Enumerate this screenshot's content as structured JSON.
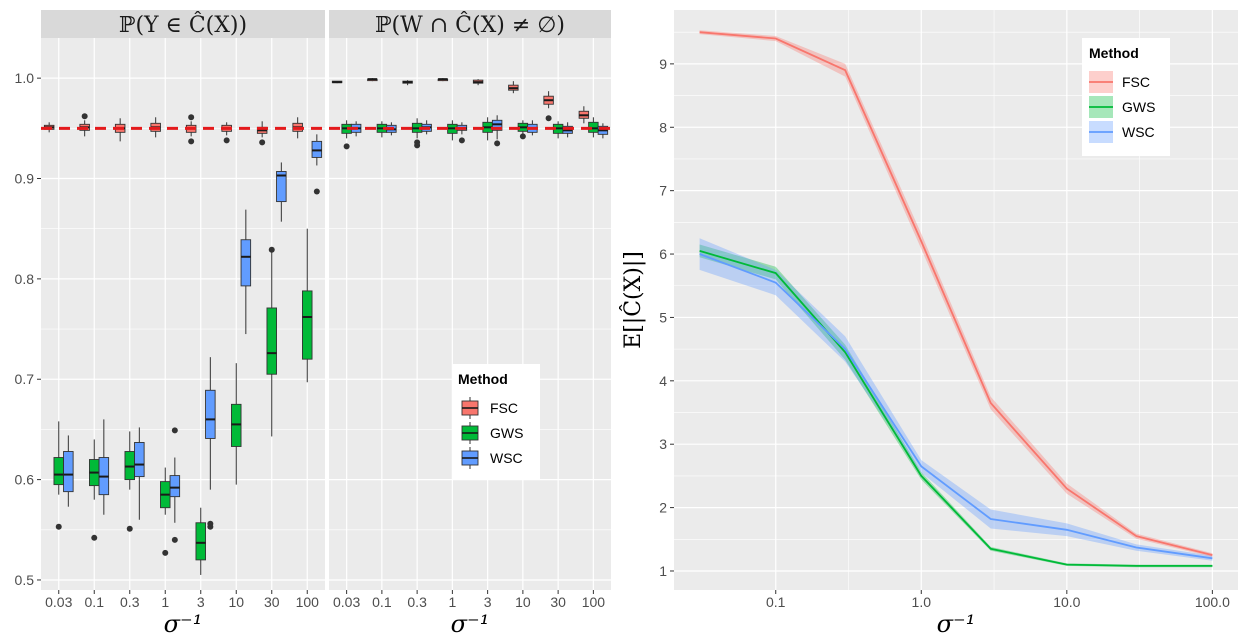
{
  "colors": {
    "FSC": "#F8766D",
    "GWS": "#00BA38",
    "WSC": "#619CFF",
    "panel_bg": "#EBEBEB",
    "strip_bg": "#D9D9D9",
    "grid": "#FFFFFF",
    "reference_line": "#E41A1C"
  },
  "chart_data": [
    {
      "type": "box",
      "title": "𝕡(Y ∈ Ĉ(X))",
      "title_display": "ℙ(Y ∈ Ĉ(X))",
      "xlabel": "σ⁻¹",
      "ylabel": "",
      "categories": [
        "0.03",
        "0.1",
        "0.3",
        "1",
        "3",
        "10",
        "30",
        "100"
      ],
      "ylim": [
        0.49,
        1.04
      ],
      "yticks": [
        "0.5",
        "0.6",
        "0.7",
        "0.8",
        "0.9",
        "1.0"
      ],
      "reference_line": 0.95,
      "grid": true,
      "legend": {
        "title": "Method",
        "entries": [
          "FSC",
          "GWS",
          "WSC"
        ],
        "position": "bottom-right"
      },
      "series": [
        {
          "name": "FSC",
          "boxes": [
            {
              "min": 0.946,
              "q1": 0.949,
              "median": 0.951,
              "q3": 0.953,
              "max": 0.956,
              "outliers": []
            },
            {
              "min": 0.942,
              "q1": 0.948,
              "median": 0.951,
              "q3": 0.954,
              "max": 0.958,
              "outliers": [
                0.962
              ]
            },
            {
              "min": 0.937,
              "q1": 0.946,
              "median": 0.95,
              "q3": 0.954,
              "max": 0.96,
              "outliers": []
            },
            {
              "min": 0.941,
              "q1": 0.947,
              "median": 0.951,
              "q3": 0.955,
              "max": 0.961,
              "outliers": []
            },
            {
              "min": 0.942,
              "q1": 0.946,
              "median": 0.95,
              "q3": 0.953,
              "max": 0.957,
              "outliers": [
                0.937,
                0.961
              ]
            },
            {
              "min": 0.943,
              "q1": 0.947,
              "median": 0.95,
              "q3": 0.953,
              "max": 0.956,
              "outliers": [
                0.938
              ]
            },
            {
              "min": 0.941,
              "q1": 0.945,
              "median": 0.948,
              "q3": 0.951,
              "max": 0.957,
              "outliers": [
                0.936
              ]
            },
            {
              "min": 0.94,
              "q1": 0.947,
              "median": 0.951,
              "q3": 0.955,
              "max": 0.961,
              "outliers": []
            }
          ]
        },
        {
          "name": "GWS",
          "boxes": [
            {
              "min": 0.585,
              "q1": 0.595,
              "median": 0.605,
              "q3": 0.622,
              "max": 0.658,
              "outliers": [
                0.553
              ]
            },
            {
              "min": 0.58,
              "q1": 0.594,
              "median": 0.607,
              "q3": 0.62,
              "max": 0.64,
              "outliers": [
                0.542
              ]
            },
            {
              "min": 0.59,
              "q1": 0.6,
              "median": 0.613,
              "q3": 0.628,
              "max": 0.648,
              "outliers": [
                0.551
              ]
            },
            {
              "min": 0.565,
              "q1": 0.572,
              "median": 0.585,
              "q3": 0.598,
              "max": 0.612,
              "outliers": [
                0.527
              ]
            },
            {
              "min": 0.505,
              "q1": 0.52,
              "median": 0.537,
              "q3": 0.557,
              "max": 0.572,
              "outliers": []
            },
            {
              "min": 0.595,
              "q1": 0.633,
              "median": 0.655,
              "q3": 0.675,
              "max": 0.716,
              "outliers": []
            },
            {
              "min": 0.643,
              "q1": 0.705,
              "median": 0.726,
              "q3": 0.771,
              "max": 0.83,
              "outliers": [
                0.829
              ]
            },
            {
              "min": 0.697,
              "q1": 0.72,
              "median": 0.762,
              "q3": 0.788,
              "max": 0.85,
              "outliers": []
            }
          ]
        },
        {
          "name": "WSC",
          "boxes": [
            {
              "min": 0.573,
              "q1": 0.588,
              "median": 0.605,
              "q3": 0.628,
              "max": 0.644,
              "outliers": []
            },
            {
              "min": 0.565,
              "q1": 0.585,
              "median": 0.603,
              "q3": 0.622,
              "max": 0.66,
              "outliers": []
            },
            {
              "min": 0.56,
              "q1": 0.603,
              "median": 0.615,
              "q3": 0.637,
              "max": 0.652,
              "outliers": []
            },
            {
              "min": 0.557,
              "q1": 0.583,
              "median": 0.592,
              "q3": 0.604,
              "max": 0.622,
              "outliers": [
                0.54,
                0.649
              ]
            },
            {
              "min": 0.59,
              "q1": 0.641,
              "median": 0.66,
              "q3": 0.689,
              "max": 0.722,
              "outliers": [
                0.553,
                0.556
              ]
            },
            {
              "min": 0.745,
              "q1": 0.793,
              "median": 0.822,
              "q3": 0.839,
              "max": 0.869,
              "outliers": []
            },
            {
              "min": 0.857,
              "q1": 0.877,
              "median": 0.903,
              "q3": 0.907,
              "max": 0.916,
              "outliers": []
            },
            {
              "min": 0.913,
              "q1": 0.921,
              "median": 0.928,
              "q3": 0.937,
              "max": 0.944,
              "outliers": [
                0.887
              ]
            }
          ]
        }
      ]
    },
    {
      "type": "box",
      "title": "ℙ(W ∩ Ĉ(X) ≠ ∅)",
      "xlabel": "σ⁻¹",
      "ylabel": "",
      "categories": [
        "0.03",
        "0.1",
        "0.3",
        "1",
        "3",
        "10",
        "30",
        "100"
      ],
      "ylim": [
        0.49,
        1.04
      ],
      "reference_line": 0.95,
      "grid": true,
      "series": [
        {
          "name": "FSC",
          "boxes": [
            {
              "min": 0.995,
              "q1": 0.996,
              "median": 0.996,
              "q3": 0.997,
              "max": 0.997,
              "outliers": []
            },
            {
              "min": 0.997,
              "q1": 0.998,
              "median": 0.999,
              "q3": 0.999,
              "max": 1.0,
              "outliers": []
            },
            {
              "min": 0.993,
              "q1": 0.995,
              "median": 0.996,
              "q3": 0.997,
              "max": 0.998,
              "outliers": []
            },
            {
              "min": 0.997,
              "q1": 0.998,
              "median": 0.999,
              "q3": 0.999,
              "max": 1.0,
              "outliers": []
            },
            {
              "min": 0.993,
              "q1": 0.995,
              "median": 0.996,
              "q3": 0.998,
              "max": 0.999,
              "outliers": []
            },
            {
              "min": 0.985,
              "q1": 0.988,
              "median": 0.99,
              "q3": 0.993,
              "max": 0.997,
              "outliers": []
            },
            {
              "min": 0.97,
              "q1": 0.974,
              "median": 0.978,
              "q3": 0.982,
              "max": 0.987,
              "outliers": [
                0.96
              ]
            },
            {
              "min": 0.955,
              "q1": 0.96,
              "median": 0.963,
              "q3": 0.967,
              "max": 0.972,
              "outliers": []
            }
          ]
        },
        {
          "name": "GWS",
          "boxes": [
            {
              "min": 0.94,
              "q1": 0.945,
              "median": 0.95,
              "q3": 0.954,
              "max": 0.958,
              "outliers": [
                0.932
              ]
            },
            {
              "min": 0.941,
              "q1": 0.946,
              "median": 0.95,
              "q3": 0.954,
              "max": 0.957,
              "outliers": []
            },
            {
              "min": 0.94,
              "q1": 0.946,
              "median": 0.95,
              "q3": 0.955,
              "max": 0.96,
              "outliers": [
                0.933,
                0.936
              ]
            },
            {
              "min": 0.938,
              "q1": 0.945,
              "median": 0.95,
              "q3": 0.954,
              "max": 0.958,
              "outliers": []
            },
            {
              "min": 0.938,
              "q1": 0.946,
              "median": 0.951,
              "q3": 0.956,
              "max": 0.961,
              "outliers": []
            },
            {
              "min": 0.94,
              "q1": 0.947,
              "median": 0.951,
              "q3": 0.955,
              "max": 0.958,
              "outliers": [
                0.942
              ]
            },
            {
              "min": 0.94,
              "q1": 0.945,
              "median": 0.95,
              "q3": 0.954,
              "max": 0.957,
              "outliers": []
            },
            {
              "min": 0.941,
              "q1": 0.946,
              "median": 0.95,
              "q3": 0.956,
              "max": 0.961,
              "outliers": []
            }
          ]
        },
        {
          "name": "WSC",
          "boxes": [
            {
              "min": 0.942,
              "q1": 0.946,
              "median": 0.95,
              "q3": 0.954,
              "max": 0.957,
              "outliers": []
            },
            {
              "min": 0.943,
              "q1": 0.946,
              "median": 0.949,
              "q3": 0.953,
              "max": 0.956,
              "outliers": []
            },
            {
              "min": 0.944,
              "q1": 0.947,
              "median": 0.951,
              "q3": 0.954,
              "max": 0.958,
              "outliers": []
            },
            {
              "min": 0.944,
              "q1": 0.948,
              "median": 0.95,
              "q3": 0.953,
              "max": 0.956,
              "outliers": [
                0.938
              ]
            },
            {
              "min": 0.939,
              "q1": 0.948,
              "median": 0.954,
              "q3": 0.958,
              "max": 0.963,
              "outliers": [
                0.935
              ]
            },
            {
              "min": 0.943,
              "q1": 0.946,
              "median": 0.95,
              "q3": 0.954,
              "max": 0.958,
              "outliers": []
            },
            {
              "min": 0.941,
              "q1": 0.945,
              "median": 0.948,
              "q3": 0.952,
              "max": 0.956,
              "outliers": []
            },
            {
              "min": 0.94,
              "q1": 0.944,
              "median": 0.948,
              "q3": 0.952,
              "max": 0.955,
              "outliers": []
            }
          ]
        }
      ]
    },
    {
      "type": "line",
      "title": "",
      "xlabel": "σ⁻¹",
      "ylabel": "𝔼[|Ĉ(X)|]",
      "ylabel_display": "E[|Ĉ(X)|]",
      "x_scale": "log10",
      "x": [
        0.03,
        0.1,
        0.3,
        1,
        3,
        10,
        30,
        100
      ],
      "xticks": [
        "0.1",
        "1.0",
        "10.0",
        "100.0"
      ],
      "xtick_values": [
        0.1,
        1,
        10,
        100
      ],
      "yticks": [
        "1",
        "2",
        "3",
        "4",
        "5",
        "6",
        "7",
        "8",
        "9"
      ],
      "ylim": [
        0.7,
        9.85
      ],
      "grid": true,
      "legend": {
        "title": "Method",
        "entries": [
          "FSC",
          "GWS",
          "WSC"
        ],
        "position": "top-right"
      },
      "series": [
        {
          "name": "FSC",
          "values": [
            9.5,
            9.4,
            8.9,
            6.2,
            3.65,
            2.3,
            1.55,
            1.25
          ],
          "band": [
            0.03,
            0.04,
            0.1,
            0.12,
            0.1,
            0.08,
            0.04,
            0.03
          ]
        },
        {
          "name": "GWS",
          "values": [
            6.05,
            5.7,
            4.45,
            2.5,
            1.35,
            1.1,
            1.08,
            1.08
          ],
          "band": [
            0.1,
            0.1,
            0.12,
            0.06,
            0.03,
            0.02,
            0.02,
            0.02
          ]
        },
        {
          "name": "WSC",
          "values": [
            6.0,
            5.55,
            4.5,
            2.65,
            1.82,
            1.65,
            1.37,
            1.2
          ],
          "band": [
            0.25,
            0.2,
            0.2,
            0.1,
            0.15,
            0.1,
            0.05,
            0.04
          ]
        }
      ]
    }
  ]
}
